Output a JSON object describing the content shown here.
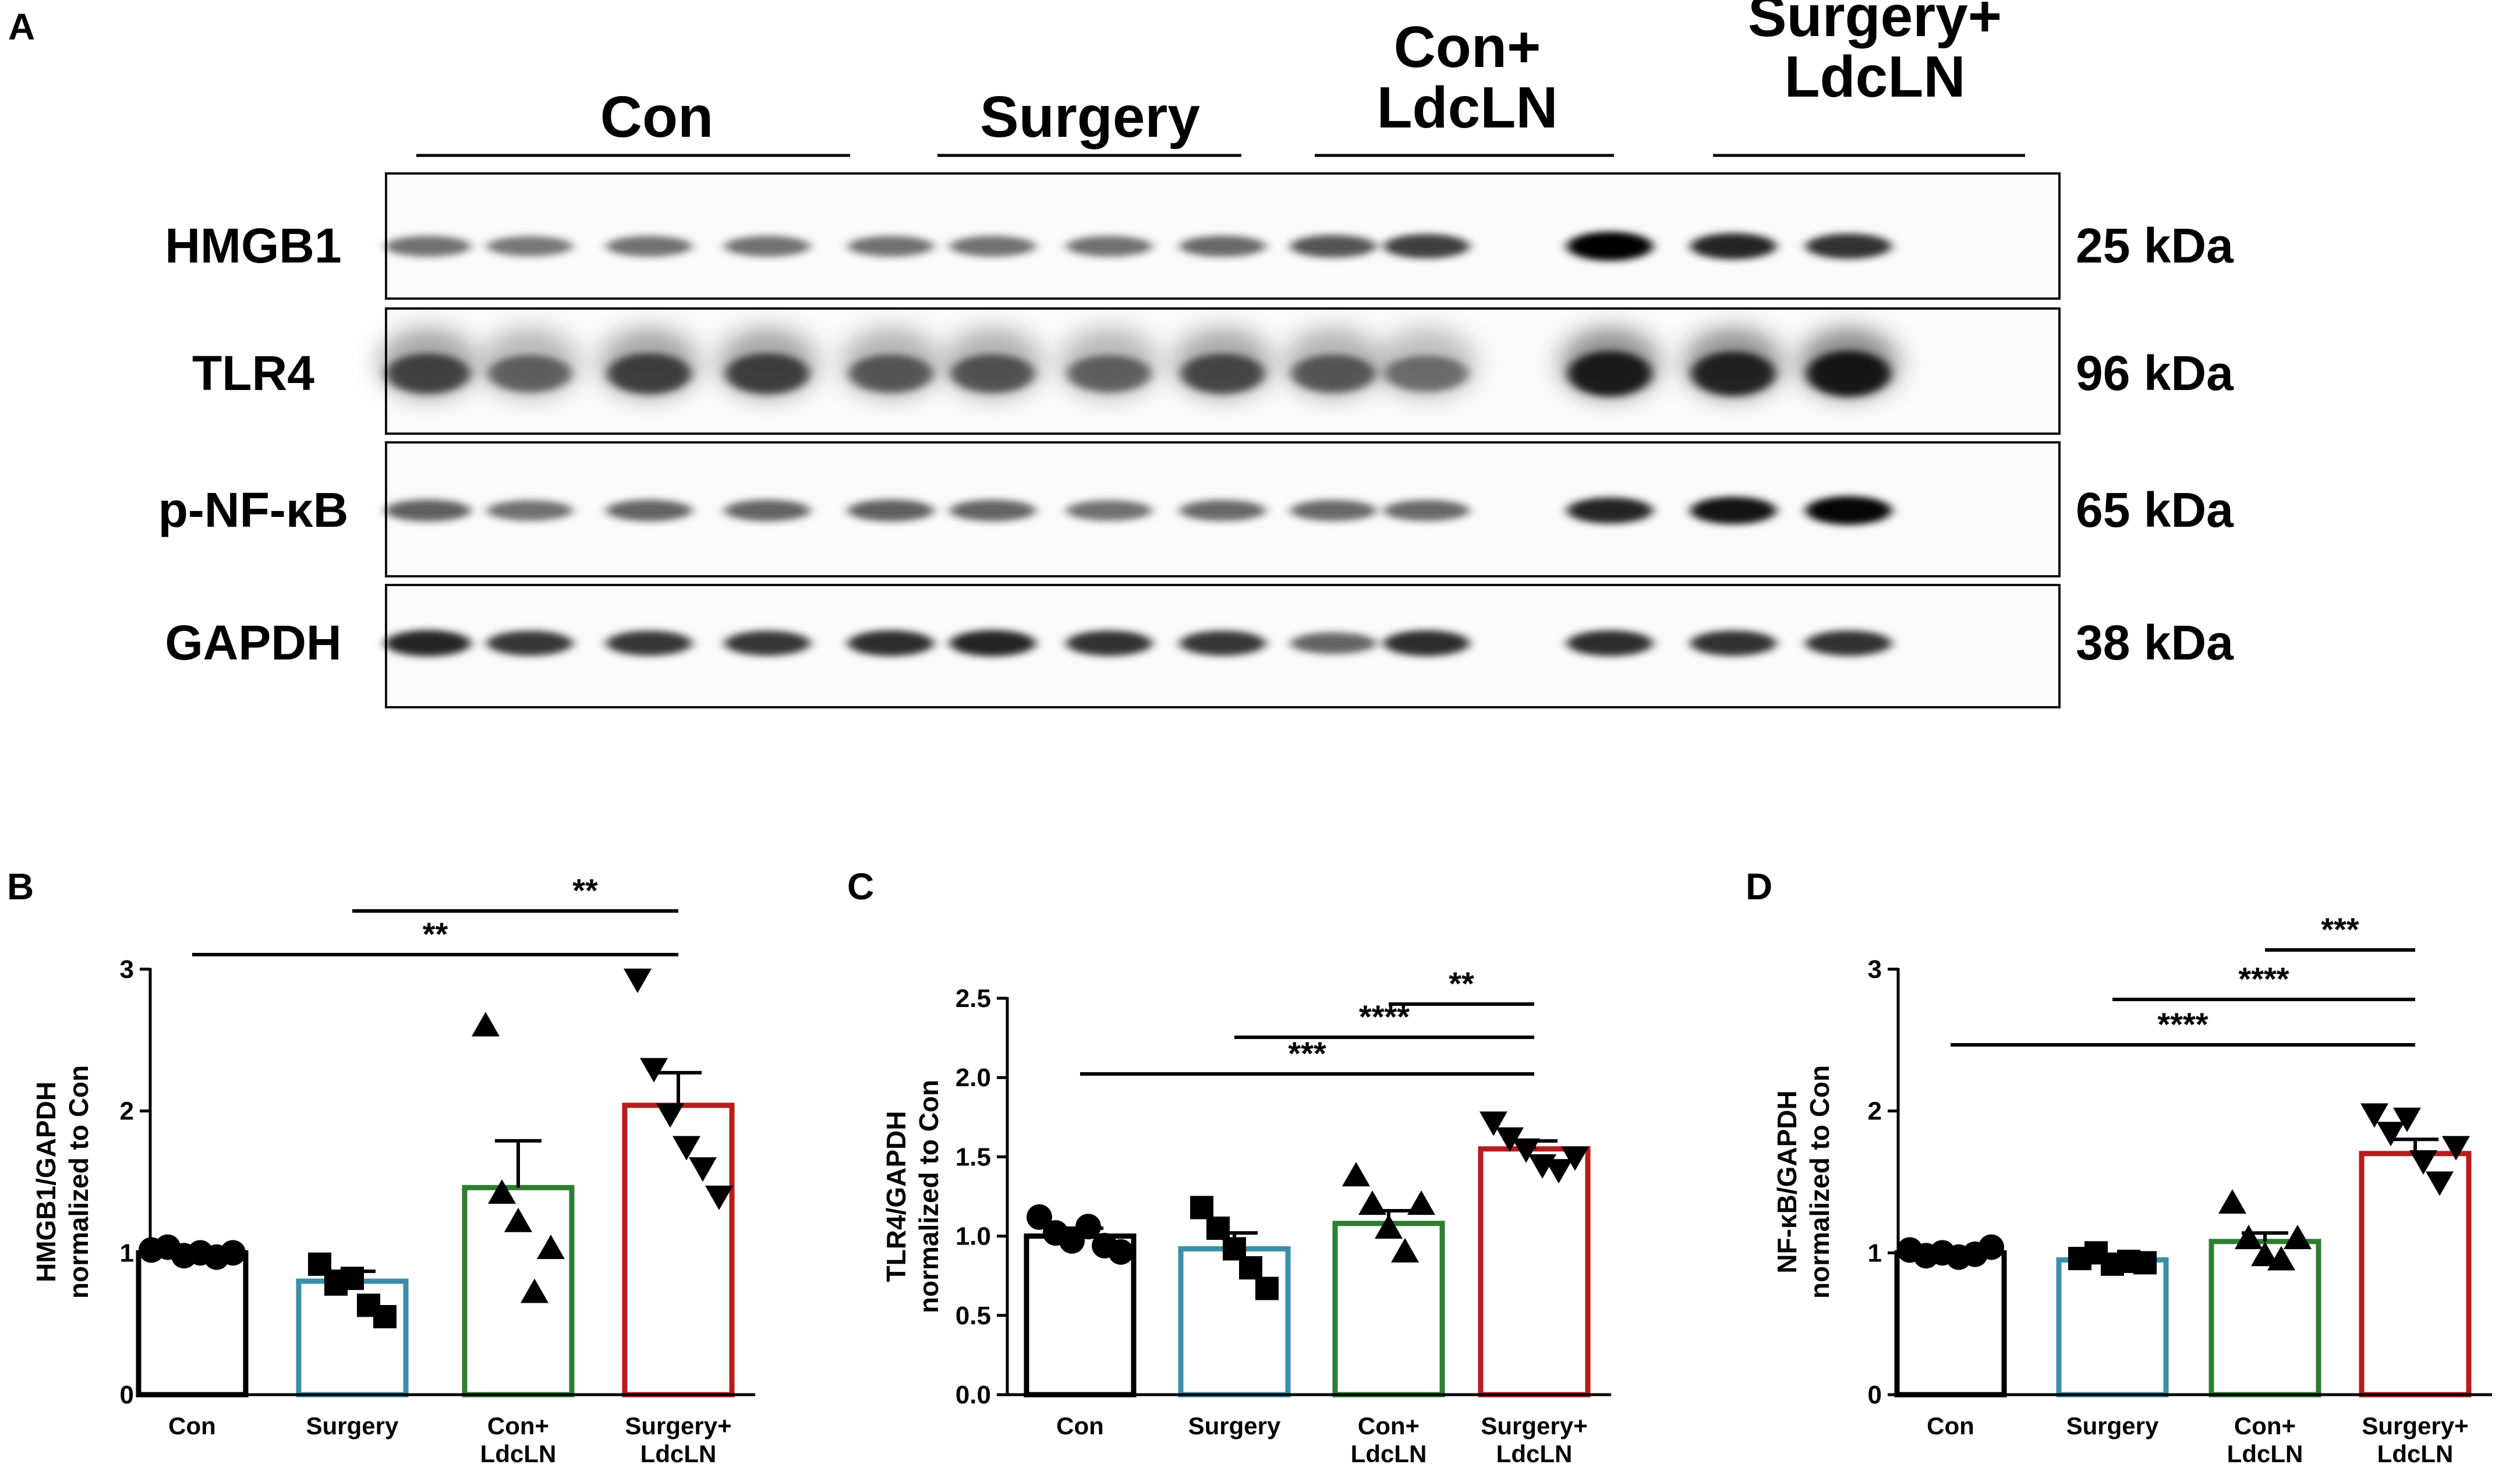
{
  "panel_a": {
    "panel_label": "A",
    "groups": [
      "Con",
      "Surgery",
      "Con+\nLdcLN",
      "Surgery+\nLdcLN"
    ],
    "lanes_per_group": [
      4,
      3,
      3,
      3
    ],
    "blots": [
      {
        "protein": "HMGB1",
        "size": "25 kDa",
        "intensities": [
          0.55,
          0.52,
          0.55,
          0.55,
          0.55,
          0.55,
          0.55,
          0.58,
          0.66,
          0.75,
          1.0,
          0.85,
          0.8
        ]
      },
      {
        "protein": "TLR4",
        "size": "96 kDa",
        "intensities": [
          0.7,
          0.55,
          0.72,
          0.72,
          0.6,
          0.62,
          0.55,
          0.68,
          0.6,
          0.5,
          0.92,
          0.88,
          0.95
        ]
      },
      {
        "protein": "p-NF-κB",
        "size": "65 kDa",
        "intensities": [
          0.62,
          0.55,
          0.6,
          0.6,
          0.62,
          0.6,
          0.55,
          0.58,
          0.58,
          0.58,
          0.85,
          0.92,
          0.98
        ]
      },
      {
        "protein": "GAPDH",
        "size": "38 kDa",
        "intensities": [
          0.85,
          0.78,
          0.78,
          0.78,
          0.82,
          0.85,
          0.8,
          0.78,
          0.6,
          0.82,
          0.82,
          0.8,
          0.8
        ]
      }
    ]
  },
  "chart_data": [
    {
      "panel_label": "B",
      "type": "bar",
      "categories": [
        "Con",
        "Surgery",
        "Con+\nLdcLN",
        "Surgery+\nLdcLN"
      ],
      "ylabel": "HMGB1/GAPDH\nnormalized to Con",
      "ylim": [
        0,
        3
      ],
      "yticks": [
        0,
        1,
        2,
        3
      ],
      "ytick_labels": [
        "0",
        "1",
        "2",
        "3"
      ],
      "values": [
        1.0,
        0.8,
        1.46,
        2.04
      ],
      "sem": [
        0.02,
        0.07,
        0.33,
        0.23
      ],
      "points": [
        [
          1.02,
          1.04,
          0.98,
          1.0,
          0.97,
          1.0
        ],
        [
          0.92,
          0.78,
          0.82,
          0.63,
          0.55
        ],
        [
          2.6,
          1.42,
          1.22,
          0.72,
          1.03
        ],
        [
          2.93,
          2.3,
          1.98,
          1.75,
          1.6,
          1.4
        ]
      ],
      "markers": [
        "circle",
        "square",
        "triangle-up",
        "triangle-down"
      ],
      "colors": [
        "#000000",
        "#3a8fa8",
        "#2e7d32",
        "#b71c1c"
      ],
      "significance": [
        {
          "from": 1,
          "to": 3,
          "label": "**"
        },
        {
          "from": 0,
          "to": 3,
          "label": "**"
        }
      ]
    },
    {
      "panel_label": "C",
      "type": "bar",
      "categories": [
        "Con",
        "Surgery",
        "Con+\nLdcLN",
        "Surgery+\nLdcLN"
      ],
      "ylabel": "TLR4/GAPDH\nnormalized to Con",
      "ylim": [
        0,
        2.5
      ],
      "yticks": [
        0,
        0.5,
        1.0,
        1.5,
        2.0,
        2.5
      ],
      "ytick_labels": [
        "0.0",
        "0.5",
        "1.0",
        "1.5",
        "2.0",
        "2.5"
      ],
      "values": [
        1.0,
        0.92,
        1.08,
        1.55
      ],
      "sem": [
        0.05,
        0.1,
        0.08,
        0.05
      ],
      "points": [
        [
          1.12,
          1.02,
          0.97,
          1.06,
          0.94,
          0.9
        ],
        [
          1.18,
          1.05,
          0.92,
          0.8,
          0.67
        ],
        [
          1.38,
          1.2,
          1.05,
          0.9,
          1.2
        ],
        [
          1.72,
          1.62,
          1.55,
          1.45,
          1.42,
          1.5
        ]
      ],
      "markers": [
        "circle",
        "square",
        "triangle-up",
        "triangle-down"
      ],
      "colors": [
        "#000000",
        "#3a8fa8",
        "#2e7d32",
        "#b71c1c"
      ],
      "significance": [
        {
          "from": 2,
          "to": 3,
          "label": "**"
        },
        {
          "from": 1,
          "to": 3,
          "label": "****"
        },
        {
          "from": 0,
          "to": 3,
          "label": "***"
        }
      ]
    },
    {
      "panel_label": "D",
      "type": "bar",
      "categories": [
        "Con",
        "Surgery",
        "Con+\nLdcLN",
        "Surgery+\nLdcLN"
      ],
      "ylabel": "NF-κB/GAPDH\nnormalized to Con",
      "ylim": [
        0,
        3
      ],
      "yticks": [
        0,
        1,
        2,
        3
      ],
      "ytick_labels": [
        "0",
        "1",
        "2",
        "3"
      ],
      "values": [
        1.0,
        0.95,
        1.08,
        1.7
      ],
      "sem": [
        0.02,
        0.03,
        0.06,
        0.1
      ],
      "points": [
        [
          1.02,
          0.98,
          1.0,
          0.97,
          0.99,
          1.04
        ],
        [
          0.96,
          1.0,
          0.92,
          0.94,
          0.93
        ],
        [
          1.35,
          1.1,
          0.98,
          0.95,
          1.1
        ],
        [
          1.98,
          1.85,
          1.95,
          1.65,
          1.5,
          1.75
        ]
      ],
      "markers": [
        "circle",
        "square",
        "triangle-up",
        "triangle-down"
      ],
      "colors": [
        "#000000",
        "#3a8fa8",
        "#2e7d32",
        "#b71c1c"
      ],
      "significance": [
        {
          "from": 2,
          "to": 3,
          "label": "***"
        },
        {
          "from": 1,
          "to": 3,
          "label": "****"
        },
        {
          "from": 0,
          "to": 3,
          "label": "****"
        }
      ]
    }
  ]
}
